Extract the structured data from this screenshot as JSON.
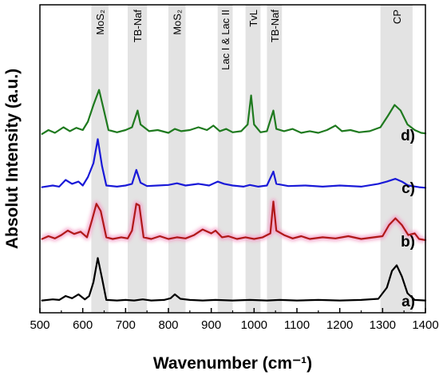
{
  "chart_data": {
    "type": "line",
    "title": "",
    "xlabel": "Wavenumber (cm⁻¹)",
    "ylabel": "Absolut Intensity (a.u.)",
    "xlim": [
      500,
      1400
    ],
    "x_ticks": [
      "500",
      "600",
      "700",
      "800",
      "900",
      "1000",
      "1100",
      "1200",
      "1300",
      "1400"
    ],
    "grid": false,
    "bands": [
      {
        "label": "MoS₂",
        "x_range": [
          620,
          660
        ]
      },
      {
        "label": "TB-Naf",
        "x_range": [
          705,
          750
        ]
      },
      {
        "label": "MoS₂",
        "x_range": [
          800,
          840
        ]
      },
      {
        "label": "Lac I & Lac II",
        "x_range": [
          915,
          950
        ]
      },
      {
        "label": "TvL",
        "x_range": [
          980,
          1015
        ]
      },
      {
        "label": "TB-Naf",
        "x_range": [
          1030,
          1065
        ]
      },
      {
        "label": "CP",
        "x_range": [
          1295,
          1370
        ]
      }
    ],
    "series": [
      {
        "name": "a)",
        "color": "#000000",
        "glow": "",
        "points": [
          [
            505,
            0.02
          ],
          [
            530,
            0.04
          ],
          [
            545,
            0.03
          ],
          [
            560,
            0.1
          ],
          [
            575,
            0.06
          ],
          [
            590,
            0.13
          ],
          [
            605,
            0.04
          ],
          [
            615,
            0.1
          ],
          [
            625,
            0.35
          ],
          [
            635,
            0.78
          ],
          [
            645,
            0.42
          ],
          [
            655,
            0.03
          ],
          [
            680,
            0.02
          ],
          [
            700,
            0.03
          ],
          [
            720,
            0.02
          ],
          [
            740,
            0.04
          ],
          [
            760,
            0.02
          ],
          [
            790,
            0.03
          ],
          [
            805,
            0.06
          ],
          [
            815,
            0.13
          ],
          [
            828,
            0.05
          ],
          [
            850,
            0.03
          ],
          [
            880,
            0.02
          ],
          [
            910,
            0.03
          ],
          [
            950,
            0.02
          ],
          [
            990,
            0.03
          ],
          [
            1030,
            0.02
          ],
          [
            1060,
            0.03
          ],
          [
            1100,
            0.02
          ],
          [
            1150,
            0.03
          ],
          [
            1200,
            0.02
          ],
          [
            1250,
            0.03
          ],
          [
            1290,
            0.05
          ],
          [
            1310,
            0.25
          ],
          [
            1322,
            0.55
          ],
          [
            1333,
            0.65
          ],
          [
            1345,
            0.45
          ],
          [
            1358,
            0.15
          ],
          [
            1375,
            0.03
          ],
          [
            1400,
            0.02
          ]
        ]
      },
      {
        "name": "b)",
        "color": "#b01818",
        "glow": "#f4a0c8",
        "points": [
          [
            505,
            0.05
          ],
          [
            520,
            0.1
          ],
          [
            535,
            0.06
          ],
          [
            550,
            0.12
          ],
          [
            565,
            0.2
          ],
          [
            580,
            0.14
          ],
          [
            595,
            0.18
          ],
          [
            610,
            0.08
          ],
          [
            622,
            0.4
          ],
          [
            632,
            0.68
          ],
          [
            642,
            0.55
          ],
          [
            655,
            0.08
          ],
          [
            670,
            0.05
          ],
          [
            690,
            0.08
          ],
          [
            705,
            0.06
          ],
          [
            715,
            0.2
          ],
          [
            725,
            0.68
          ],
          [
            732,
            0.65
          ],
          [
            742,
            0.08
          ],
          [
            760,
            0.05
          ],
          [
            780,
            0.1
          ],
          [
            800,
            0.05
          ],
          [
            820,
            0.08
          ],
          [
            840,
            0.06
          ],
          [
            860,
            0.12
          ],
          [
            880,
            0.22
          ],
          [
            900,
            0.15
          ],
          [
            910,
            0.2
          ],
          [
            925,
            0.08
          ],
          [
            940,
            0.1
          ],
          [
            960,
            0.05
          ],
          [
            980,
            0.08
          ],
          [
            1000,
            0.05
          ],
          [
            1020,
            0.08
          ],
          [
            1038,
            0.15
          ],
          [
            1045,
            0.72
          ],
          [
            1052,
            0.2
          ],
          [
            1070,
            0.12
          ],
          [
            1090,
            0.06
          ],
          [
            1110,
            0.1
          ],
          [
            1130,
            0.05
          ],
          [
            1160,
            0.08
          ],
          [
            1190,
            0.06
          ],
          [
            1220,
            0.1
          ],
          [
            1250,
            0.05
          ],
          [
            1280,
            0.08
          ],
          [
            1300,
            0.1
          ],
          [
            1315,
            0.3
          ],
          [
            1330,
            0.42
          ],
          [
            1345,
            0.3
          ],
          [
            1360,
            0.12
          ],
          [
            1375,
            0.15
          ],
          [
            1385,
            0.05
          ],
          [
            1400,
            0.03
          ]
        ]
      },
      {
        "name": "c)",
        "color": "#1a1ad8",
        "glow": "",
        "points": [
          [
            505,
            0.02
          ],
          [
            530,
            0.05
          ],
          [
            545,
            0.03
          ],
          [
            560,
            0.15
          ],
          [
            575,
            0.08
          ],
          [
            590,
            0.12
          ],
          [
            600,
            0.05
          ],
          [
            612,
            0.2
          ],
          [
            625,
            0.45
          ],
          [
            635,
            0.88
          ],
          [
            645,
            0.4
          ],
          [
            655,
            0.05
          ],
          [
            680,
            0.03
          ],
          [
            700,
            0.05
          ],
          [
            715,
            0.08
          ],
          [
            725,
            0.33
          ],
          [
            735,
            0.1
          ],
          [
            750,
            0.04
          ],
          [
            775,
            0.05
          ],
          [
            800,
            0.06
          ],
          [
            820,
            0.09
          ],
          [
            840,
            0.05
          ],
          [
            870,
            0.08
          ],
          [
            895,
            0.05
          ],
          [
            915,
            0.12
          ],
          [
            930,
            0.08
          ],
          [
            950,
            0.05
          ],
          [
            975,
            0.03
          ],
          [
            990,
            0.06
          ],
          [
            1010,
            0.03
          ],
          [
            1030,
            0.05
          ],
          [
            1045,
            0.3
          ],
          [
            1052,
            0.08
          ],
          [
            1080,
            0.04
          ],
          [
            1120,
            0.05
          ],
          [
            1160,
            0.03
          ],
          [
            1200,
            0.05
          ],
          [
            1250,
            0.03
          ],
          [
            1290,
            0.08
          ],
          [
            1310,
            0.12
          ],
          [
            1330,
            0.17
          ],
          [
            1345,
            0.12
          ],
          [
            1360,
            0.05
          ],
          [
            1385,
            0.02
          ],
          [
            1400,
            0.01
          ]
        ]
      },
      {
        "name": "d)",
        "color": "#1f7a1f",
        "glow": "",
        "points": [
          [
            505,
            0.03
          ],
          [
            520,
            0.1
          ],
          [
            535,
            0.05
          ],
          [
            555,
            0.15
          ],
          [
            570,
            0.08
          ],
          [
            585,
            0.14
          ],
          [
            600,
            0.1
          ],
          [
            612,
            0.25
          ],
          [
            625,
            0.55
          ],
          [
            638,
            0.82
          ],
          [
            648,
            0.5
          ],
          [
            660,
            0.1
          ],
          [
            680,
            0.06
          ],
          [
            700,
            0.1
          ],
          [
            715,
            0.15
          ],
          [
            728,
            0.45
          ],
          [
            735,
            0.2
          ],
          [
            755,
            0.08
          ],
          [
            775,
            0.1
          ],
          [
            800,
            0.05
          ],
          [
            815,
            0.12
          ],
          [
            830,
            0.08
          ],
          [
            850,
            0.1
          ],
          [
            870,
            0.15
          ],
          [
            890,
            0.1
          ],
          [
            905,
            0.18
          ],
          [
            920,
            0.08
          ],
          [
            935,
            0.12
          ],
          [
            950,
            0.06
          ],
          [
            970,
            0.08
          ],
          [
            985,
            0.2
          ],
          [
            993,
            0.72
          ],
          [
            1000,
            0.2
          ],
          [
            1015,
            0.06
          ],
          [
            1030,
            0.08
          ],
          [
            1045,
            0.45
          ],
          [
            1052,
            0.12
          ],
          [
            1070,
            0.08
          ],
          [
            1090,
            0.12
          ],
          [
            1110,
            0.05
          ],
          [
            1130,
            0.08
          ],
          [
            1150,
            0.05
          ],
          [
            1170,
            0.1
          ],
          [
            1190,
            0.18
          ],
          [
            1205,
            0.08
          ],
          [
            1225,
            0.1
          ],
          [
            1245,
            0.06
          ],
          [
            1270,
            0.08
          ],
          [
            1295,
            0.15
          ],
          [
            1312,
            0.35
          ],
          [
            1328,
            0.55
          ],
          [
            1342,
            0.45
          ],
          [
            1358,
            0.2
          ],
          [
            1375,
            0.1
          ],
          [
            1390,
            0.05
          ],
          [
            1400,
            0.04
          ]
        ]
      }
    ]
  }
}
